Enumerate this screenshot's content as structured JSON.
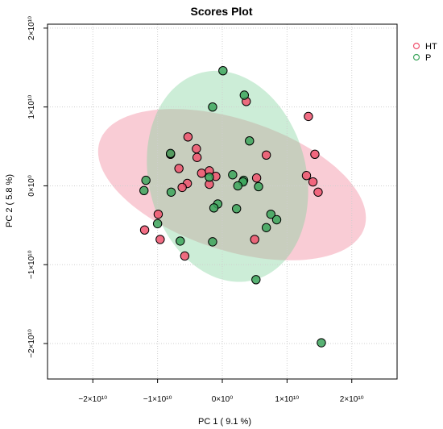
{
  "chart_data": {
    "type": "scatter",
    "title": "Scores Plot",
    "xlabel": "PC 1 ( 9.1 %)",
    "ylabel": "PC 2 ( 5.8 %)",
    "xlim": [
      -27000000000.0,
      27000000000.0
    ],
    "ylim": [
      -24500000000.0,
      20500000000.0
    ],
    "grid": true,
    "legend_position": "top-right",
    "x_ticks": [
      {
        "value": -20000000000.0,
        "label": "−2×10¹⁰"
      },
      {
        "value": -10000000000.0,
        "label": "−1×10¹⁰"
      },
      {
        "value": 0,
        "label": "0×10⁰"
      },
      {
        "value": 10000000000.0,
        "label": "1×10¹⁰"
      },
      {
        "value": 20000000000.0,
        "label": "2×10¹⁰"
      }
    ],
    "y_ticks": [
      {
        "value": -20000000000.0,
        "label": "−2×10¹⁰"
      },
      {
        "value": -10000000000.0,
        "label": "−1×10¹⁰"
      },
      {
        "value": 0,
        "label": "0×10⁰"
      },
      {
        "value": 10000000000.0,
        "label": "1×10¹⁰"
      },
      {
        "value": 20000000000.0,
        "label": "2×10¹⁰"
      }
    ],
    "series": [
      {
        "name": "HT",
        "color": "#f0536f",
        "fill": "#f08096",
        "ellipse": {
          "cx": 1500000000.0,
          "cy": 150000000.0,
          "rx": 21500000000.0,
          "ry": 8300000000.0,
          "angle_deg": -18
        },
        "points": [
          [
            3700000000.0,
            10700000000.0
          ],
          [
            13300000000.0,
            8800000000.0
          ],
          [
            -5300000000.0,
            6200000000.0
          ],
          [
            -4000000000.0,
            4700000000.0
          ],
          [
            -8000000000.0,
            4000000000.0
          ],
          [
            -3900000000.0,
            3600000000.0
          ],
          [
            -6700000000.0,
            2200000000.0
          ],
          [
            -3200000000.0,
            1600000000.0
          ],
          [
            -2000000000.0,
            1900000000.0
          ],
          [
            -1000000000.0,
            1200000000.0
          ],
          [
            -2000000000.0,
            200000000.0
          ],
          [
            -5400000000.0,
            300000000.0
          ],
          [
            -6200000000.0,
            -200000000.0
          ],
          [
            6800000000.0,
            3900000000.0
          ],
          [
            14300000000.0,
            4000000000.0
          ],
          [
            13000000000.0,
            1300000000.0
          ],
          [
            14000000000.0,
            500000000.0
          ],
          [
            14800000000.0,
            -800000000.0
          ],
          [
            5300000000.0,
            1000000000.0
          ],
          [
            -9900000000.0,
            -3600000000.0
          ],
          [
            -12000000000.0,
            -5600000000.0
          ],
          [
            -9600000000.0,
            -6800000000.0
          ],
          [
            -5800000000.0,
            -8900000000.0
          ],
          [
            5000000000.0,
            -6800000000.0
          ]
        ]
      },
      {
        "name": "P",
        "color": "#3ca55c",
        "fill": "#7fd29c",
        "ellipse": {
          "cx": 800000000.0,
          "cy": 1200000000.0,
          "rx": 16500000000.0,
          "ry": 10000000000.0,
          "angle_deg": -76
        },
        "points": [
          [
            100000000.0,
            14600000000.0
          ],
          [
            3400000000.0,
            11500000000.0
          ],
          [
            -1500000000.0,
            10000000000.0
          ],
          [
            4200000000.0,
            5700000000.0
          ],
          [
            -8000000000.0,
            4100000000.0
          ],
          [
            -11800000000.0,
            700000000.0
          ],
          [
            -12100000000.0,
            -600000000.0
          ],
          [
            -7900000000.0,
            -800000000.0
          ],
          [
            1600000000.0,
            1400000000.0
          ],
          [
            -2000000000.0,
            1100000000.0
          ],
          [
            3300000000.0,
            700000000.0
          ],
          [
            3200000000.0,
            500000000.0
          ],
          [
            2400000000.0,
            0.0
          ],
          [
            5600000000.0,
            -100000000.0
          ],
          [
            -700000000.0,
            -2300000000.0
          ],
          [
            -1300000000.0,
            -2800000000.0
          ],
          [
            2200000000.0,
            -2900000000.0
          ],
          [
            7500000000.0,
            -3600000000.0
          ],
          [
            8400000000.0,
            -4300000000.0
          ],
          [
            6800000000.0,
            -5300000000.0
          ],
          [
            -10000000000.0,
            -4800000000.0
          ],
          [
            -6500000000.0,
            -7000000000.0
          ],
          [
            -1500000000.0,
            -7100000000.0
          ],
          [
            5200000000.0,
            -11900000000.0
          ],
          [
            15300000000.0,
            -19900000000.0
          ]
        ]
      }
    ]
  }
}
